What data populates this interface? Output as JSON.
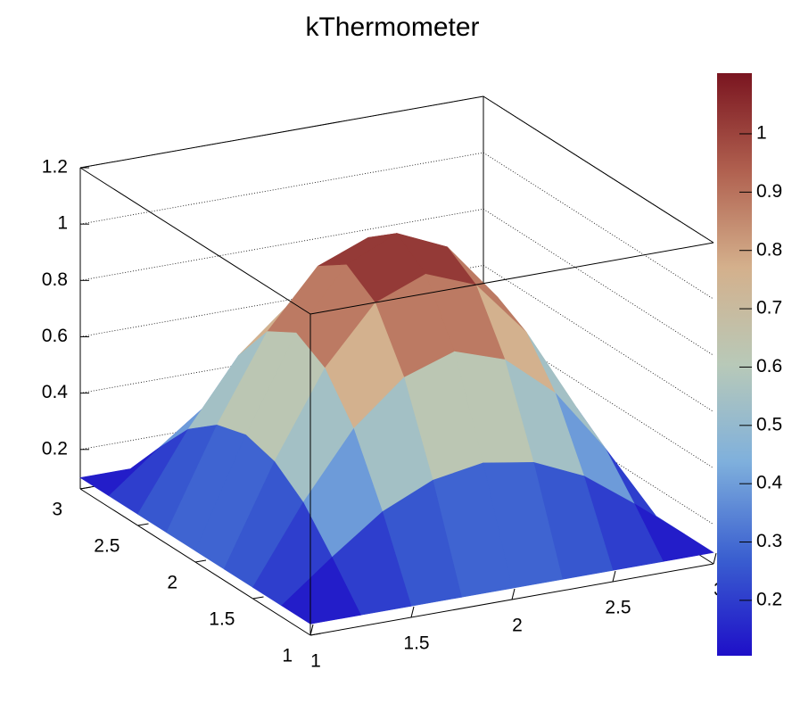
{
  "chart_data": {
    "type": "surface",
    "title": "kThermometer",
    "x": [
      1,
      1.25,
      1.5,
      1.75,
      2,
      2.25,
      2.5,
      2.75,
      3
    ],
    "y": [
      1,
      1.25,
      1.5,
      1.75,
      2,
      2.25,
      2.5,
      2.75,
      3
    ],
    "z": [
      [
        0.1,
        0.1,
        0.1,
        0.1,
        0.1,
        0.1,
        0.1,
        0.1,
        0.1
      ],
      [
        0.1,
        0.24,
        0.37,
        0.45,
        0.48,
        0.45,
        0.37,
        0.24,
        0.1
      ],
      [
        0.1,
        0.37,
        0.6,
        0.75,
        0.81,
        0.75,
        0.6,
        0.37,
        0.1
      ],
      [
        0.1,
        0.45,
        0.75,
        0.95,
        1.02,
        0.95,
        0.75,
        0.45,
        0.1
      ],
      [
        0.1,
        0.48,
        0.81,
        1.02,
        1.1,
        1.02,
        0.81,
        0.48,
        0.1
      ],
      [
        0.1,
        0.45,
        0.75,
        0.95,
        1.02,
        0.95,
        0.75,
        0.45,
        0.1
      ],
      [
        0.1,
        0.37,
        0.6,
        0.75,
        0.81,
        0.75,
        0.6,
        0.37,
        0.1
      ],
      [
        0.1,
        0.24,
        0.37,
        0.45,
        0.48,
        0.45,
        0.37,
        0.24,
        0.1
      ],
      [
        0.1,
        0.1,
        0.1,
        0.1,
        0.1,
        0.1,
        0.1,
        0.1,
        0.1
      ]
    ],
    "xlim": [
      1,
      3
    ],
    "ylim": [
      1,
      3
    ],
    "zlim": [
      0.06,
      1.2
    ],
    "xticks": [
      1,
      1.5,
      2,
      2.5,
      3
    ],
    "yticks": [
      1,
      1.5,
      2,
      2.5,
      3
    ],
    "zticks": [
      0.2,
      0.4,
      0.6,
      0.8,
      1,
      1.2
    ],
    "colorbar_lim": [
      0.105,
      1.104
    ],
    "colorbar_ticks": [
      0.2,
      0.3,
      0.4,
      0.5,
      0.6,
      0.7,
      0.8,
      0.9,
      1
    ],
    "palette": [
      "#1e0fc8",
      "#3a5fd0",
      "#7fb0dc",
      "#b8c9b8",
      "#d4b08c",
      "#b0604f",
      "#7a1520"
    ],
    "grid": true
  }
}
